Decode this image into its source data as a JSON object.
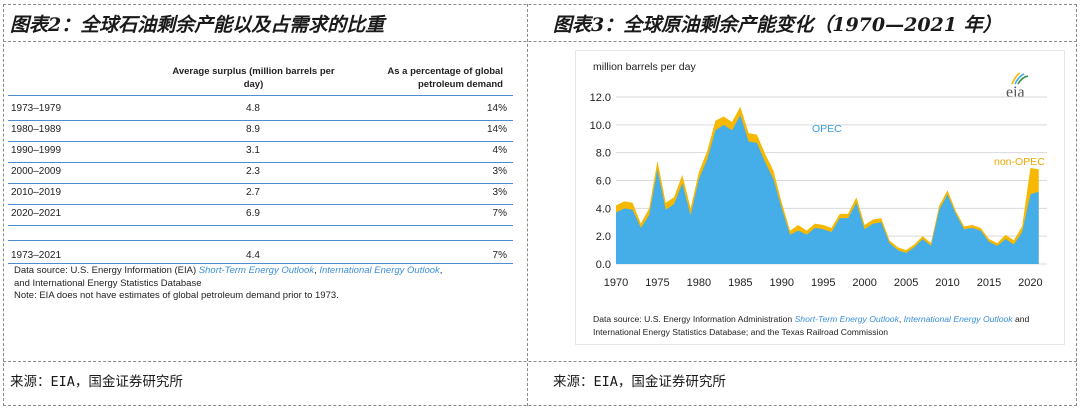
{
  "left_panel": {
    "title": "图表2：全球石油剩余产能以及占需求的比重",
    "source": "来源：EIA，国金证券研究所",
    "table": {
      "header_avg": "Average surplus (million barrels per day)",
      "header_pct": "As a percentage of global petroleum demand",
      "rows": [
        {
          "period": "1973–1979",
          "avg": "4.8",
          "pct": "14%"
        },
        {
          "period": "1980–1989",
          "avg": "8.9",
          "pct": "14%"
        },
        {
          "period": "1990–1999",
          "avg": "3.1",
          "pct": "4%"
        },
        {
          "period": "2000–2009",
          "avg": "2.3",
          "pct": "3%"
        },
        {
          "period": "2010–2019",
          "avg": "2.7",
          "pct": "3%"
        },
        {
          "period": "2020–2021",
          "avg": "6.9",
          "pct": "7%"
        }
      ],
      "total_row": {
        "period": "1973–2021",
        "avg": "4.4",
        "pct": "7%"
      },
      "note_line1_prefix": "Data source: U.S. Energy Information (EIA) ",
      "note_link1": "Short-Term Energy Outlook",
      "note_sep": ", ",
      "note_link2": "International Energy Outlook",
      "note_line1_suffix": ",",
      "note_line2": "and International Energy Statistics Database",
      "note_line3": "Note: EIA does not have estimates of global petroleum demand prior to 1973."
    }
  },
  "right_panel": {
    "title": "图表3：全球原油剩余产能变化（1970—2021 年）",
    "source": "来源：EIA，国金证券研究所",
    "logo_text": "eia",
    "chart_source_prefix": "Data source: U.S. Energy Information Administration ",
    "chart_source_link1": "Short-Term Energy Outlook",
    "chart_source_sep": ", ",
    "chart_source_link2": "International Energy Outlook",
    "chart_source_suffix": " and",
    "chart_source_line2": "International Energy Statistics Database; and the Texas Railroad Commission"
  },
  "chart_data": {
    "type": "area",
    "stacked": true,
    "ylabel": "million barrels per day",
    "xlabel": "",
    "ylim": [
      0,
      12
    ],
    "xlim": [
      1970,
      2022
    ],
    "yticks": [
      "0.0",
      "2.0",
      "4.0",
      "6.0",
      "8.0",
      "10.0",
      "12.0"
    ],
    "xticks": [
      "1970",
      "1975",
      "1980",
      "1985",
      "1990",
      "1995",
      "2000",
      "2005",
      "2010",
      "2015",
      "2020"
    ],
    "grid": "horizontal",
    "colors": {
      "OPEC": "#45aee8",
      "non-OPEC": "#f6b800"
    },
    "x": [
      1970,
      1971,
      1972,
      1973,
      1974,
      1975,
      1976,
      1977,
      1978,
      1979,
      1980,
      1981,
      1982,
      1983,
      1984,
      1985,
      1986,
      1987,
      1988,
      1989,
      1990,
      1991,
      1992,
      1993,
      1994,
      1995,
      1996,
      1997,
      1998,
      1999,
      2000,
      2001,
      2002,
      2003,
      2004,
      2005,
      2006,
      2007,
      2008,
      2009,
      2010,
      2011,
      2012,
      2013,
      2014,
      2015,
      2016,
      2017,
      2018,
      2019,
      2020,
      2021,
      2022
    ],
    "series": [
      {
        "name": "OPEC",
        "values": [
          3.7,
          4.0,
          3.9,
          2.6,
          3.5,
          6.8,
          3.9,
          4.3,
          5.8,
          3.5,
          6.1,
          7.5,
          9.6,
          10.0,
          9.6,
          10.7,
          8.8,
          8.7,
          7.3,
          6.1,
          4.0,
          2.1,
          2.4,
          2.1,
          2.6,
          2.5,
          2.3,
          3.3,
          3.3,
          4.4,
          2.5,
          2.9,
          3.0,
          1.5,
          1.0,
          0.8,
          1.2,
          1.8,
          1.3,
          3.9,
          5.0,
          3.6,
          2.5,
          2.6,
          2.4,
          1.6,
          1.3,
          1.8,
          1.4,
          2.3,
          5.0,
          5.2,
          null
        ]
      },
      {
        "name": "non-OPEC",
        "values": [
          0.5,
          0.5,
          0.5,
          0.3,
          0.5,
          0.6,
          0.5,
          0.5,
          0.6,
          0.5,
          0.5,
          0.6,
          0.7,
          0.6,
          0.6,
          0.6,
          0.6,
          0.6,
          0.6,
          0.6,
          0.4,
          0.3,
          0.4,
          0.3,
          0.3,
          0.3,
          0.3,
          0.3,
          0.3,
          0.4,
          0.3,
          0.3,
          0.3,
          0.2,
          0.2,
          0.2,
          0.2,
          0.2,
          0.2,
          0.3,
          0.3,
          0.2,
          0.2,
          0.2,
          0.2,
          0.2,
          0.2,
          0.3,
          0.3,
          0.4,
          1.9,
          1.6,
          null
        ]
      }
    ],
    "labels": [
      "OPEC",
      "non-OPEC"
    ]
  }
}
